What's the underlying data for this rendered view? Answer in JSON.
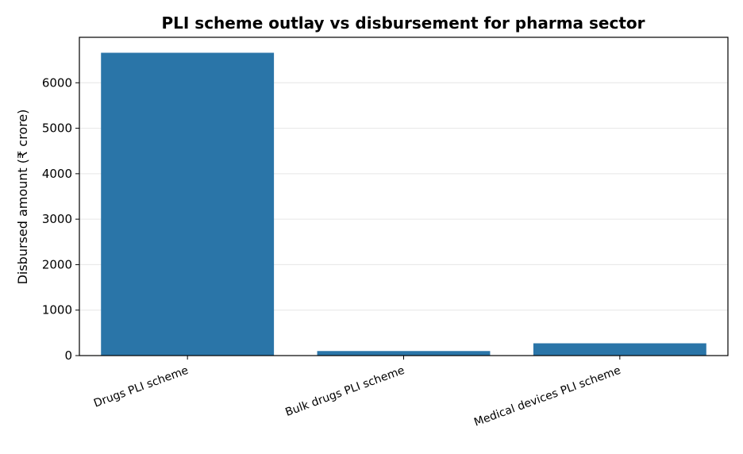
{
  "chart_data": {
    "type": "bar",
    "title": "PLI scheme outlay vs disbursement for pharma sector",
    "xlabel": "",
    "ylabel": "Disbursed amount (₹ crore)",
    "categories": [
      "Drugs PLI scheme",
      "Bulk drugs PLI scheme",
      "Medical devices PLI scheme"
    ],
    "values": [
      6660,
      100,
      270
    ],
    "ylim": [
      0,
      7000
    ],
    "yticks": [
      0,
      1000,
      2000,
      3000,
      4000,
      5000,
      6000
    ],
    "grid": "horizontal",
    "legend": "none",
    "colors": {
      "bar": "#2a75a8",
      "grid": "#e6e6e6",
      "axis": "#000000"
    }
  }
}
